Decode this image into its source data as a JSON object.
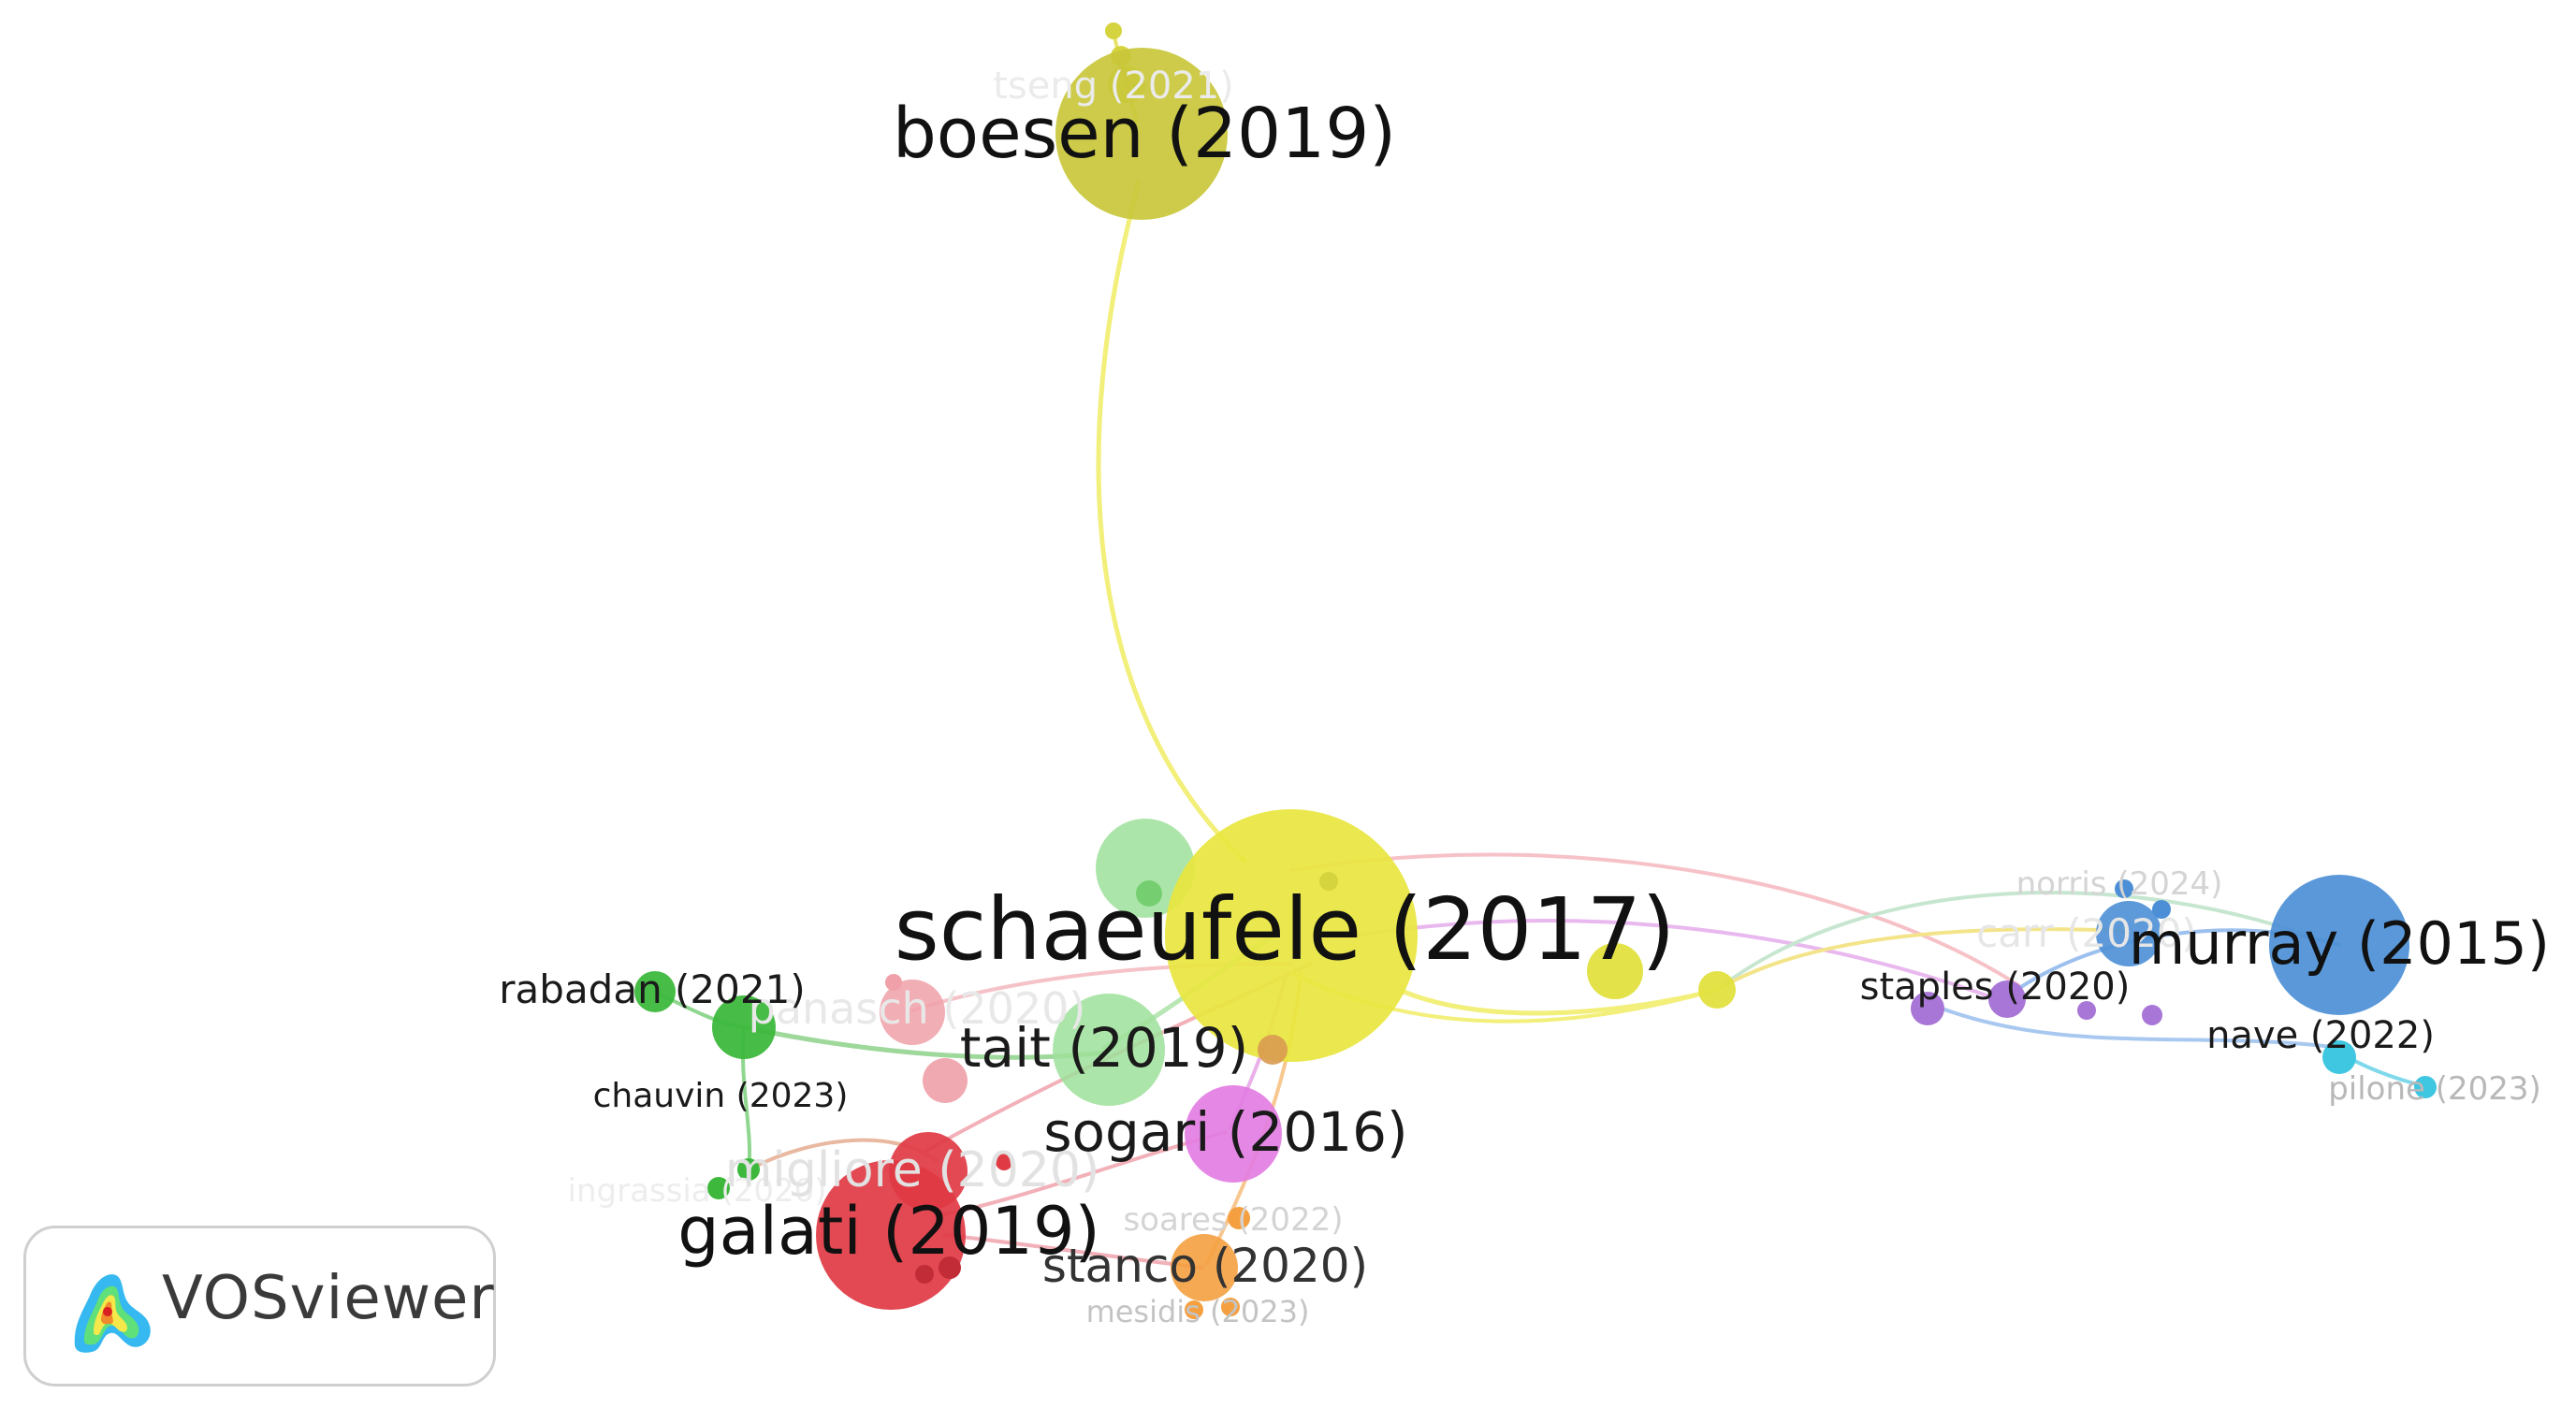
{
  "nodes": [
    {
      "id": "boesen",
      "label": "boesen (2019)",
      "color": "#c9c73a",
      "size": "large"
    },
    {
      "id": "tseng",
      "label": "tseng (2021)",
      "color": "#d6d43e",
      "size": "small"
    },
    {
      "id": "schaeufele",
      "label": "schaeufele (2017)",
      "color": "#e8e63f",
      "size": "xlarge"
    },
    {
      "id": "murray",
      "label": "murray (2015)",
      "color": "#4c8fd6",
      "size": "large"
    },
    {
      "id": "norris",
      "label": "norris (2024)",
      "color": "#4c8fd6",
      "size": "small"
    },
    {
      "id": "carr",
      "label": "carr (2020)",
      "color": "#4c8fd6",
      "size": "small"
    },
    {
      "id": "staples",
      "label": "staples (2020)",
      "color": "#a876d6",
      "size": "small"
    },
    {
      "id": "nave",
      "label": "nave (2022)",
      "color": "#3fc6e0",
      "size": "small"
    },
    {
      "id": "pilone",
      "label": "pilone (2023)",
      "color": "#3fc6e0",
      "size": "small"
    },
    {
      "id": "rabadan",
      "label": "rabadan (2021)",
      "color": "#3db83d",
      "size": "small"
    },
    {
      "id": "chauvin",
      "label": "chauvin (2023)",
      "color": "#3db83d",
      "size": "small"
    },
    {
      "id": "ingrassia",
      "label": "ingrassia (2020)",
      "color": "#3db83d",
      "size": "small"
    },
    {
      "id": "panasch",
      "label": "panasch (2020)",
      "color": "#f0a0a8",
      "size": "small"
    },
    {
      "id": "tait",
      "label": "tait (2019)",
      "color": "#9ee09a",
      "size": "medium"
    },
    {
      "id": "sogari",
      "label": "sogari (2016)",
      "color": "#e27be2",
      "size": "medium"
    },
    {
      "id": "migliore",
      "label": "migliore (2020)",
      "color": "#e03a44",
      "size": "medium"
    },
    {
      "id": "galati",
      "label": "galati (2019)",
      "color": "#e03a44",
      "size": "large"
    },
    {
      "id": "soares",
      "label": "soares (2022)",
      "color": "#f5a040",
      "size": "small"
    },
    {
      "id": "stanco",
      "label": "stanco (2020)",
      "color": "#f5a040",
      "size": "medium"
    },
    {
      "id": "mesidis",
      "label": "mesidis (2023)",
      "color": "#f5a040",
      "size": "small"
    }
  ],
  "badge": {
    "text": "VOSviewer",
    "logo_icon": "vosviewer-heatmap-logo-icon"
  }
}
